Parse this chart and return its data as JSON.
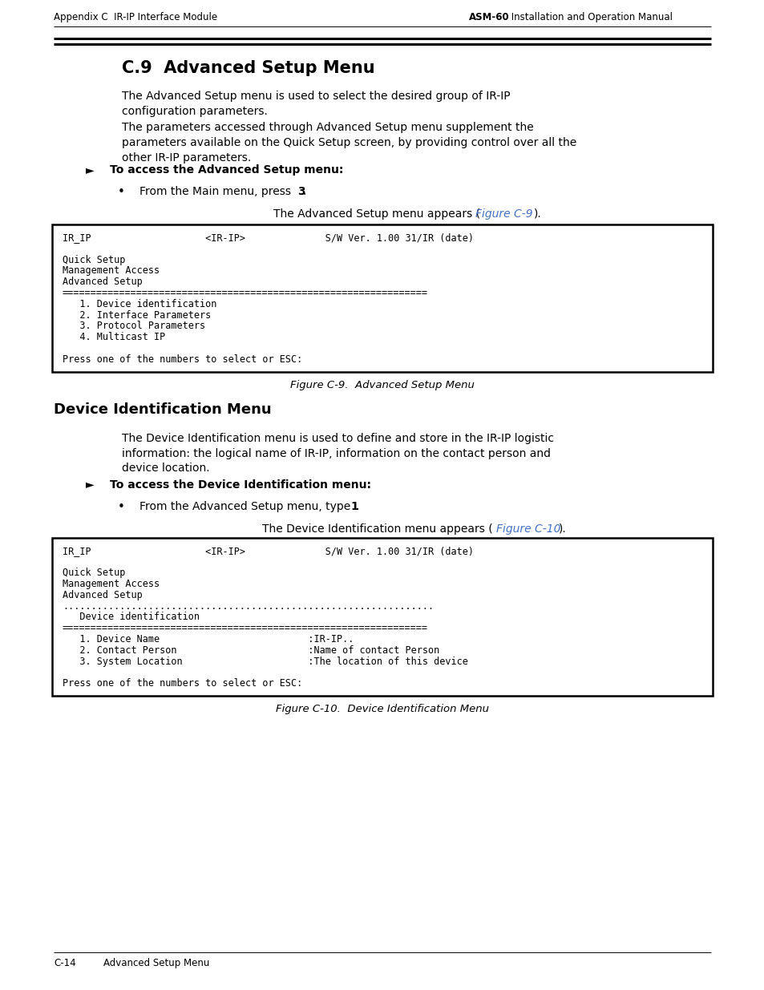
{
  "bg_color": "#ffffff",
  "page_width": 9.54,
  "page_height": 12.35,
  "header_left": "Appendix C  IR-IP Interface Module",
  "header_right_bold": "ASM-60",
  "header_right_normal": " Installation and Operation Manual",
  "footer_left": "C-14",
  "footer_right": "Advanced Setup Menu",
  "section_title": "C.9  Advanced Setup Menu",
  "para1": "The Advanced Setup menu is used to select the desired group of IR-IP\nconfiguration parameters.",
  "para2": "The parameters accessed through Advanced Setup menu supplement the\nparameters available on the Quick Setup screen, by providing control over all the\nother IR-IP parameters.",
  "arrow_label": "►   To access the Advanced Setup menu:",
  "bullet1_normal": "From the Main menu, press ",
  "bullet1_bold": "3",
  "caption1_normal1": "The Advanced Setup menu appears (",
  "caption1_link": "Figure C-9",
  "caption1_normal2": ").",
  "fig1_lines": [
    "IR_IP                    <IR-IP>              S/W Ver. 1.00 31/IR (date)",
    "",
    "Quick Setup",
    "Management Access",
    "Advanced Setup",
    "================================================================",
    "   1. Device identification",
    "   2. Interface Parameters",
    "   3. Protocol Parameters",
    "   4. Multicast IP",
    "",
    "Press one of the numbers to select or ESC:"
  ],
  "fig1_caption": "Figure C-9.  Advanced Setup Menu",
  "section2_title": "Device Identification Menu",
  "para3": "The Device Identification menu is used to define and store in the IR-IP logistic\ninformation: the logical name of IR-IP, information on the contact person and\ndevice location.",
  "arrow_label2": "►   To access the Device Identification menu:",
  "bullet2_normal": "From the Advanced Setup menu, type ",
  "bullet2_bold": "1",
  "caption2_normal1": "The Device Identification menu appears (",
  "caption2_link": "Figure C-10",
  "caption2_normal2": ").",
  "fig2_lines": [
    "IR_IP                    <IR-IP>              S/W Ver. 1.00 31/IR (date)",
    "",
    "Quick Setup",
    "Management Access",
    "Advanced Setup",
    ".................................................................",
    "   Device identification",
    "================================================================",
    "   1. Device Name                          :IR-IP..",
    "   2. Contact Person                       :Name of contact Person",
    "   3. System Location                      :The location of this device",
    "",
    "Press one of the numbers to select or ESC:"
  ],
  "fig2_caption": "Figure C-10.  Device Identification Menu",
  "link_color": "#4472c4",
  "mono_font": "DejaVu Sans Mono",
  "normal_font": "DejaVu Sans",
  "header_fontsize": 8.5,
  "body_fontsize": 10.0,
  "title_fontsize": 15,
  "section2_fontsize": 13,
  "mono_fontsize": 8.5,
  "fig_caption_fontsize": 9.5,
  "footer_fontsize": 8.5
}
